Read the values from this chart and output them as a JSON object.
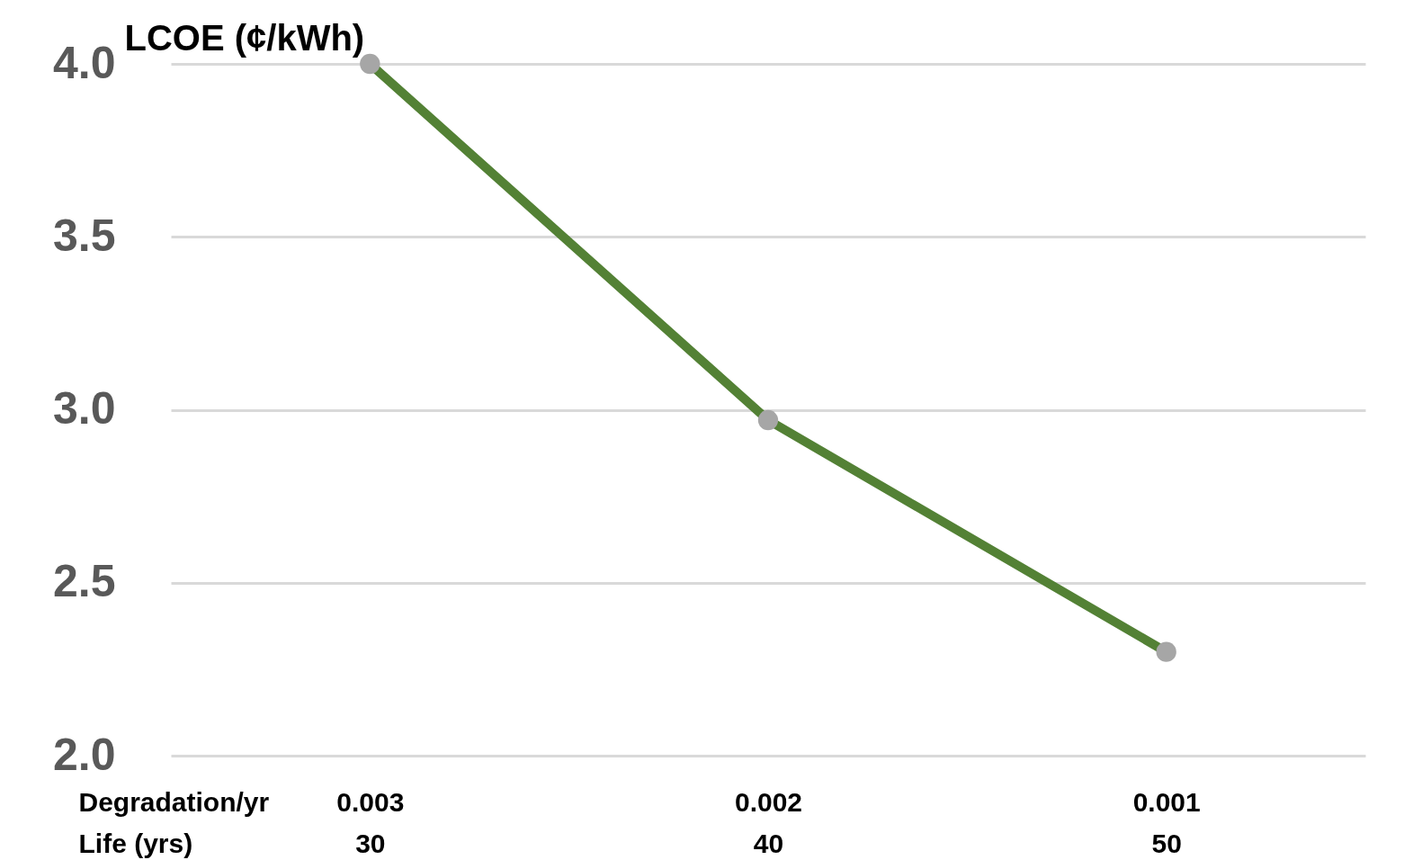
{
  "chart_data": {
    "type": "line",
    "ylabel": "LCOE (¢/kWh)",
    "xlabel": "Degradation/yr\nLife (yrs)",
    "categories": [
      "0.003\n30",
      "0.002\n40",
      "0.001\n50"
    ],
    "series": [
      {
        "color": "#538135",
        "values": [
          4.0,
          2.97,
          2.3
        ]
      }
    ],
    "ylim": [
      2,
      4
    ],
    "yticks": [
      {
        "value": 2,
        "label": "2.0"
      },
      {
        "value": 2.5,
        "label": "2.5"
      },
      {
        "value": 3,
        "label": "3.0"
      },
      {
        "value": 3.5,
        "label": "3.5"
      },
      {
        "value": 4,
        "label": "4.0"
      }
    ],
    "grid": "y",
    "marker": "circle",
    "line_style": "solid"
  }
}
